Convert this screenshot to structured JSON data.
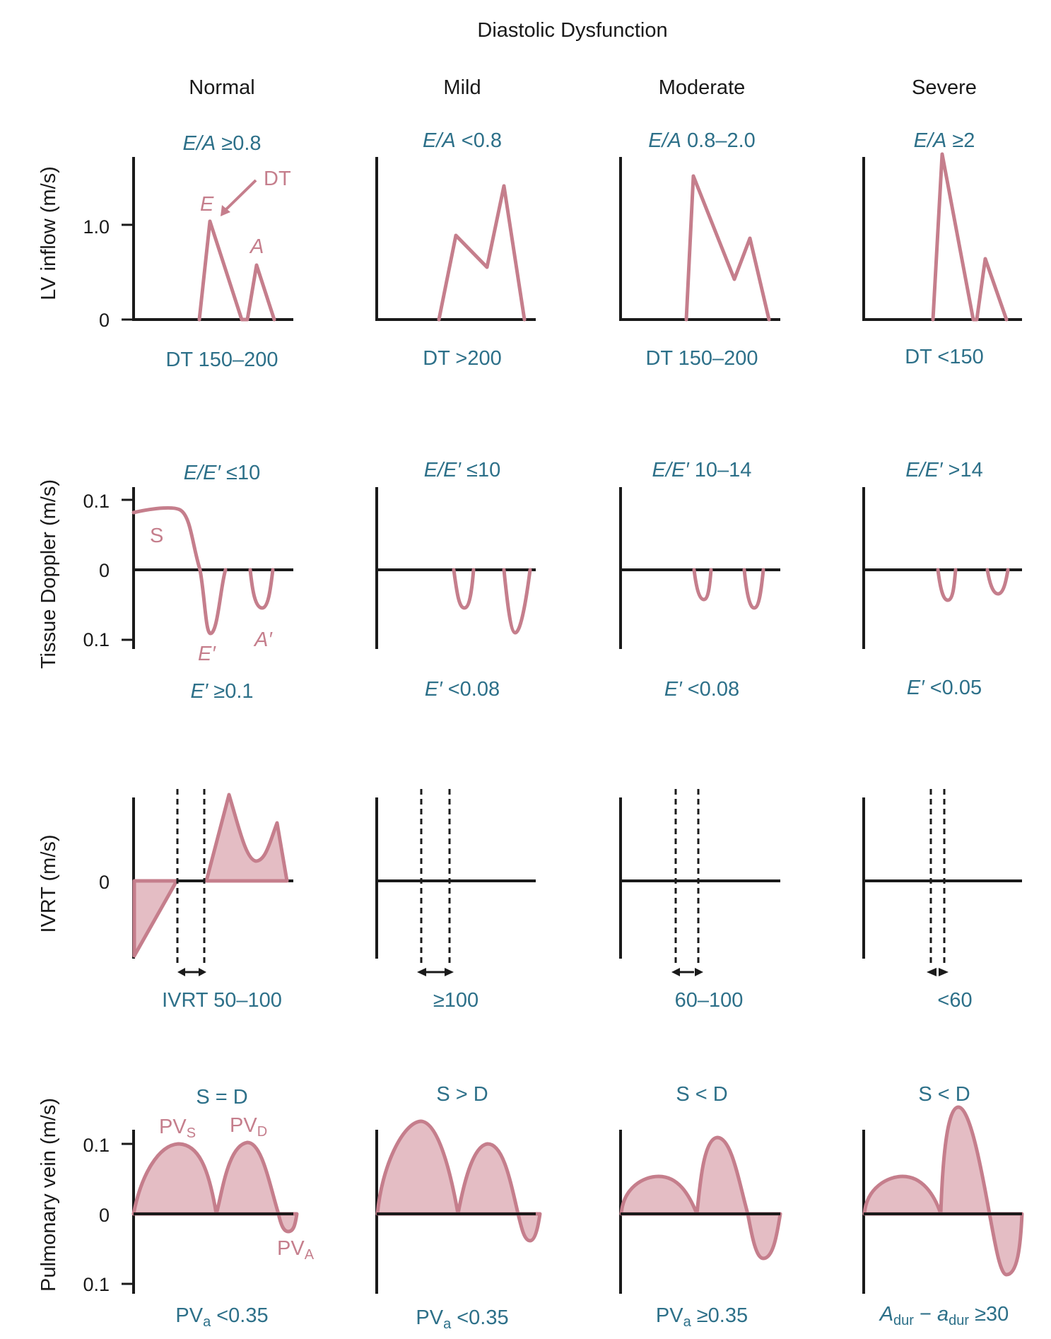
{
  "title": "Diastolic Dysfunction",
  "columns": [
    "Normal",
    "Mild",
    "Moderate",
    "Severe"
  ],
  "row_labels": [
    "LV inflow (m/s)",
    "Tissue Doppler (m/s)",
    "IVRT (m/s)",
    "Pulmonary vein (m/s)"
  ],
  "ticks": {
    "lv": [
      "1.0",
      "0"
    ],
    "td": [
      "0.1",
      "0",
      "0.1"
    ],
    "ivrt": [
      "0"
    ],
    "pv": [
      "0.1",
      "0",
      "0.1"
    ]
  },
  "lv_ea": [
    {
      "prefix": "E/A",
      "value": " ≥0.8"
    },
    {
      "prefix": "E/A",
      "value": " <0.8"
    },
    {
      "prefix": "E/A",
      "value": " 0.8–2.0"
    },
    {
      "prefix": "E/A",
      "value": " ≥2"
    }
  ],
  "lv_dt": [
    "DT 150–200",
    "DT >200",
    "DT 150–200",
    "DT <150"
  ],
  "lv_annotations": {
    "e": "E",
    "a": "A",
    "dt": "DT"
  },
  "td_ratio": [
    {
      "prefix": "E/E′",
      "value": " ≤10"
    },
    {
      "prefix": "E/E′",
      "value": " ≤10"
    },
    {
      "prefix": "E/E′",
      "value": " 10–14"
    },
    {
      "prefix": "E/E′",
      "value": " >14"
    }
  ],
  "td_eprime": [
    {
      "prefix": "E′",
      "value": " ≥0.1"
    },
    {
      "prefix": "E′",
      "value": " <0.08"
    },
    {
      "prefix": "E′",
      "value": " <0.08"
    },
    {
      "prefix": "E′",
      "value": " <0.05"
    }
  ],
  "td_annotations": {
    "s": "S",
    "eprime": "E′",
    "aprime": "A′"
  },
  "ivrt_values": [
    "IVRT 50–100",
    "≥100",
    "60–100",
    "<60"
  ],
  "pv_relation": [
    "S = D",
    "S > D",
    "S < D",
    "S < D"
  ],
  "pv_annotations": {
    "pvs": {
      "main": "PV",
      "sub": "S"
    },
    "pvd": {
      "main": "PV",
      "sub": "D"
    },
    "pva": {
      "main": "PV",
      "sub": "A"
    }
  },
  "pv_footer": [
    {
      "main": "PV",
      "sub": "a",
      "rest": " <0.35"
    },
    {
      "main": "PV",
      "sub": "a",
      "rest": " <0.35"
    },
    {
      "main": "PV",
      "sub": "a",
      "rest": " ≥0.35"
    },
    {
      "a1": "A",
      "s1": "dur",
      "mid": " − ",
      "a2": "a",
      "s2": "dur",
      "rest": " ≥30"
    }
  ],
  "colors": {
    "curve": "#c57e8c",
    "fill": "#e4bdc4",
    "label_blue": "#2d7089",
    "axis": "#1a1a1a"
  }
}
